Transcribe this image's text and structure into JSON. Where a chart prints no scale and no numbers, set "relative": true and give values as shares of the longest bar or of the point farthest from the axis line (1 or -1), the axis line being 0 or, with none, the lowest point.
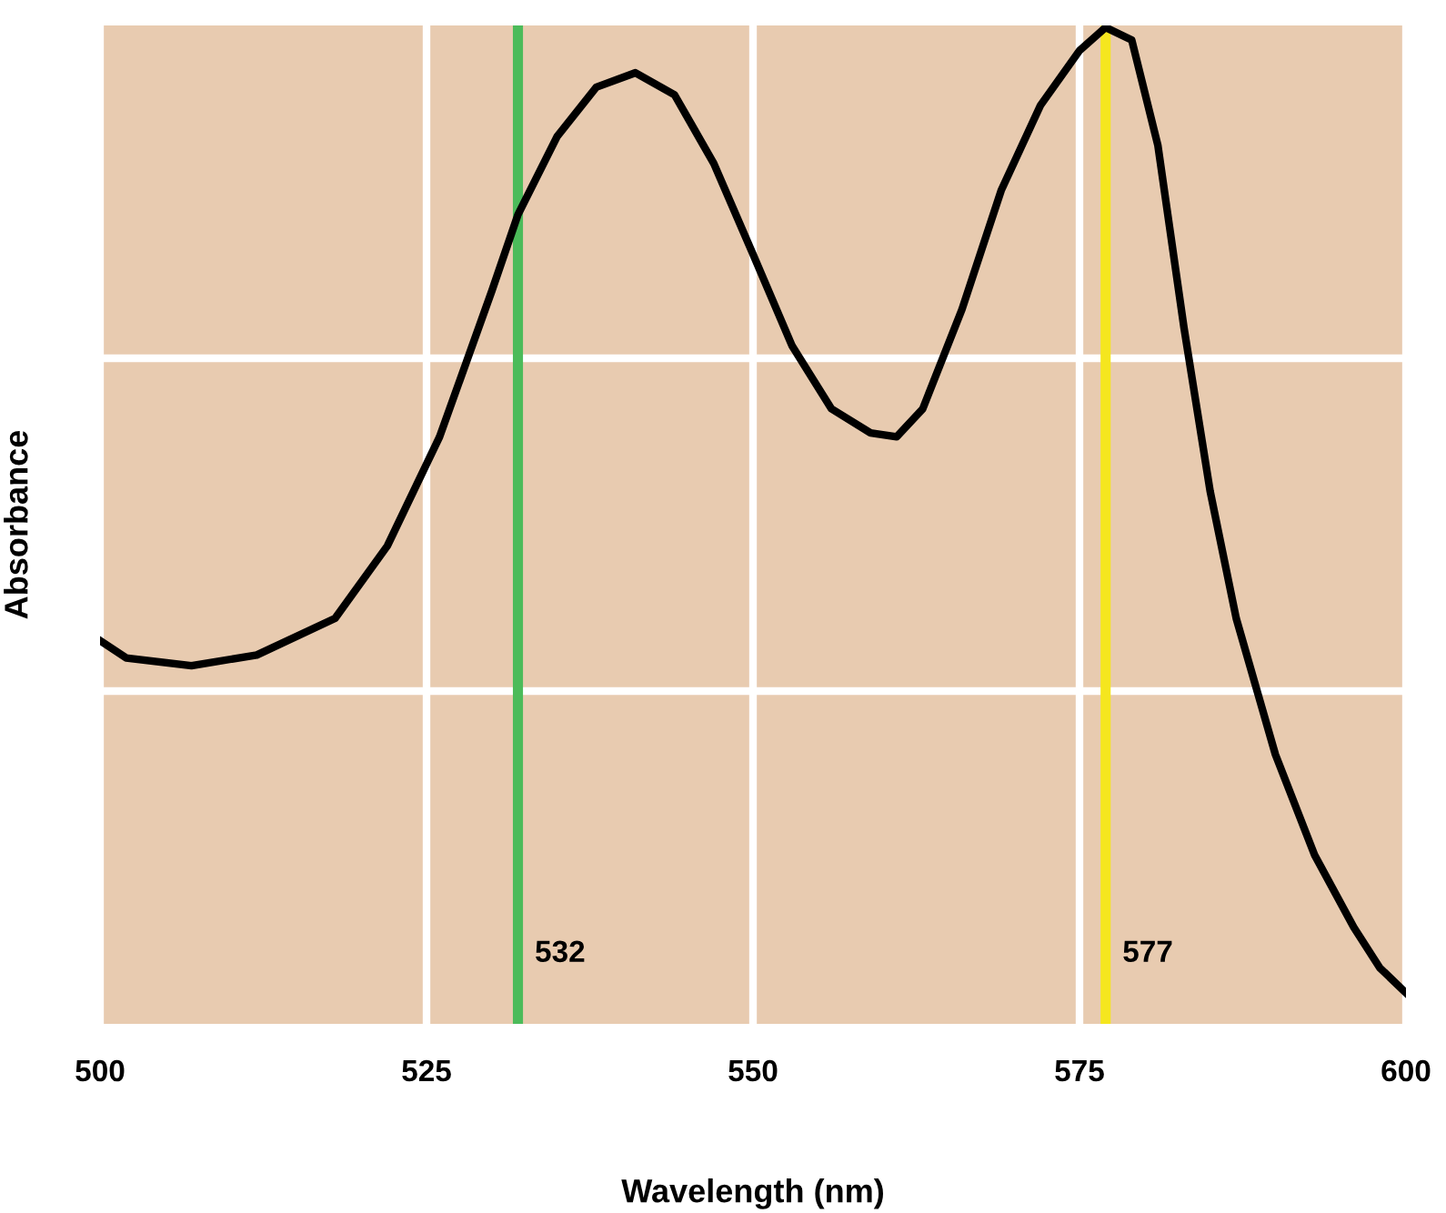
{
  "chart_data": {
    "type": "line",
    "xlabel": "Wavelength (nm)",
    "ylabel": "Absorbance",
    "relative": true,
    "xlim": [
      500,
      600
    ],
    "xticks": [
      500,
      525,
      550,
      575,
      600
    ],
    "grid": true,
    "line_style": "solid",
    "marker": "none",
    "series": [
      {
        "color": "#000000",
        "x": [
          500,
          502,
          507,
          512,
          518,
          522,
          526,
          530,
          532,
          535,
          538,
          541,
          544,
          547,
          550,
          553,
          556,
          559,
          561,
          563,
          566,
          569,
          572,
          575,
          577,
          579,
          581,
          583,
          585,
          587,
          590,
          593,
          596,
          598,
          600
        ],
        "values": [
          0.365,
          0.347,
          0.339,
          0.35,
          0.388,
          0.463,
          0.576,
          0.727,
          0.806,
          0.887,
          0.938,
          0.953,
          0.93,
          0.859,
          0.765,
          0.67,
          0.605,
          0.58,
          0.576,
          0.605,
          0.708,
          0.831,
          0.919,
          0.976,
          1,
          0.987,
          0.878,
          0.689,
          0.52,
          0.388,
          0.247,
          0.143,
          0.068,
          0.026,
          0
        ]
      }
    ],
    "ref_lines": [
      {
        "axis": "x",
        "value": 532,
        "label": "532",
        "color": "#4cbb5a"
      },
      {
        "axis": "x",
        "value": 577,
        "label": "577",
        "color": "#f5e61e"
      }
    ]
  }
}
